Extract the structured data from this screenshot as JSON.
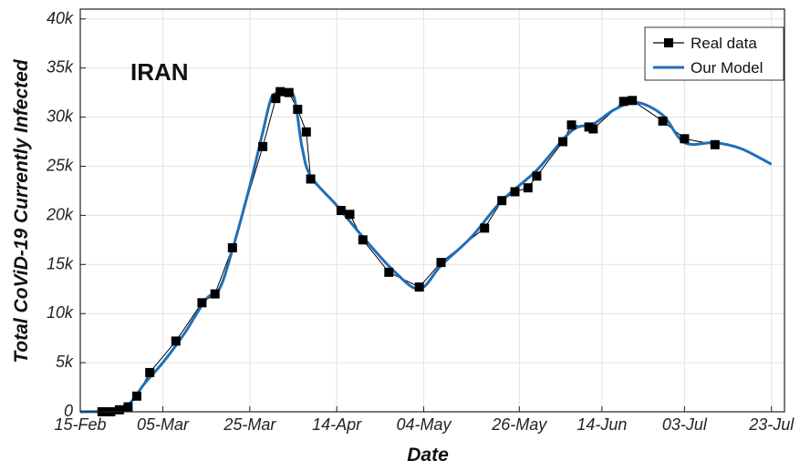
{
  "chart_data": {
    "type": "line",
    "title": "",
    "annotation": "IRAN",
    "xlabel": "Date",
    "ylabel": "Total CoViD-19 Currently Infected",
    "x_start": "15-Feb",
    "x_tick_labels": [
      "15-Feb",
      "05-Mar",
      "25-Mar",
      "14-Apr",
      "04-May",
      "26-May",
      "14-Jun",
      "03-Jul",
      "23-Jul"
    ],
    "x_tick_dates": [
      "2020-02-15",
      "2020-03-05",
      "2020-03-25",
      "2020-04-14",
      "2020-05-04",
      "2020-05-26",
      "2020-06-14",
      "2020-07-03",
      "2020-07-23"
    ],
    "xlim": [
      "2020-02-15",
      "2020-07-26"
    ],
    "ylim": [
      0,
      41000
    ],
    "y_ticks": [
      0,
      5000,
      10000,
      15000,
      20000,
      25000,
      30000,
      35000,
      40000
    ],
    "y_tick_labels": [
      "0",
      "5k",
      "10k",
      "15k",
      "20k",
      "25k",
      "30k",
      "35k",
      "40k"
    ],
    "grid": true,
    "legend_position": "top-right",
    "series": [
      {
        "name": "Real data",
        "color": "#000000",
        "marker": "square",
        "points": [
          [
            "2020-02-20",
            0
          ],
          [
            "2020-02-22",
            0
          ],
          [
            "2020-02-24",
            200
          ],
          [
            "2020-02-26",
            500
          ],
          [
            "2020-02-28",
            1600
          ],
          [
            "2020-03-02",
            4000
          ],
          [
            "2020-03-08",
            7200
          ],
          [
            "2020-03-14",
            11100
          ],
          [
            "2020-03-17",
            12000
          ],
          [
            "2020-03-21",
            16700
          ],
          [
            "2020-03-28",
            27000
          ],
          [
            "2020-03-31",
            31900
          ],
          [
            "2020-04-01",
            32600
          ],
          [
            "2020-04-03",
            32500
          ],
          [
            "2020-04-05",
            30800
          ],
          [
            "2020-04-07",
            28500
          ],
          [
            "2020-04-08",
            23700
          ],
          [
            "2020-04-15",
            20500
          ],
          [
            "2020-04-17",
            20100
          ],
          [
            "2020-04-20",
            17500
          ],
          [
            "2020-04-26",
            14200
          ],
          [
            "2020-05-03",
            12700
          ],
          [
            "2020-05-08",
            15200
          ],
          [
            "2020-05-18",
            18700
          ],
          [
            "2020-05-22",
            21500
          ],
          [
            "2020-05-25",
            22400
          ],
          [
            "2020-05-28",
            22800
          ],
          [
            "2020-05-30",
            24000
          ],
          [
            "2020-06-05",
            27500
          ],
          [
            "2020-06-07",
            29200
          ],
          [
            "2020-06-11",
            29000
          ],
          [
            "2020-06-12",
            28800
          ],
          [
            "2020-06-19",
            31600
          ],
          [
            "2020-06-21",
            31700
          ],
          [
            "2020-06-28",
            29600
          ],
          [
            "2020-07-03",
            27800
          ],
          [
            "2020-07-10",
            27200
          ]
        ]
      },
      {
        "name": "Our Model",
        "color": "#1f6fb5",
        "points": [
          [
            "2020-02-15",
            0
          ],
          [
            "2020-02-22",
            100
          ],
          [
            "2020-02-26",
            700
          ],
          [
            "2020-03-01",
            3000
          ],
          [
            "2020-03-05",
            5000
          ],
          [
            "2020-03-10",
            8000
          ],
          [
            "2020-03-15",
            11500
          ],
          [
            "2020-03-18",
            12500
          ],
          [
            "2020-03-21",
            16500
          ],
          [
            "2020-03-25",
            23000
          ],
          [
            "2020-03-28",
            28500
          ],
          [
            "2020-03-30",
            32000
          ],
          [
            "2020-04-01",
            32400
          ],
          [
            "2020-04-04",
            32300
          ],
          [
            "2020-04-06",
            27000
          ],
          [
            "2020-04-08",
            24000
          ],
          [
            "2020-04-14",
            21000
          ],
          [
            "2020-04-20",
            17800
          ],
          [
            "2020-04-27",
            14400
          ],
          [
            "2020-05-03",
            12500
          ],
          [
            "2020-05-08",
            14900
          ],
          [
            "2020-05-15",
            17800
          ],
          [
            "2020-05-22",
            21500
          ],
          [
            "2020-05-30",
            24600
          ],
          [
            "2020-06-07",
            28600
          ],
          [
            "2020-06-12",
            29300
          ],
          [
            "2020-06-17",
            30800
          ],
          [
            "2020-06-22",
            31500
          ],
          [
            "2020-06-28",
            30200
          ],
          [
            "2020-07-03",
            27400
          ],
          [
            "2020-07-10",
            27400
          ],
          [
            "2020-07-16",
            26800
          ],
          [
            "2020-07-23",
            25200
          ]
        ]
      }
    ]
  }
}
